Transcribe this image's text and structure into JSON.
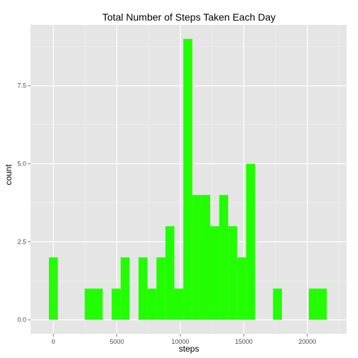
{
  "chart_data": {
    "type": "bar",
    "title": "Total Number of Steps Taken Each Day",
    "xlabel": "steps",
    "ylabel": "count",
    "xlim": [
      -1800,
      23100
    ],
    "ylim": [
      -0.45,
      9.45
    ],
    "x_ticks": [
      0,
      5000,
      10000,
      15000,
      20000
    ],
    "x_tick_labels": [
      "0",
      "5000",
      "10000",
      "15000",
      "20000"
    ],
    "y_ticks": [
      0.0,
      2.5,
      5.0,
      7.5
    ],
    "y_tick_labels": [
      "0.0",
      "2.5",
      "5.0",
      "7.5"
    ],
    "grid": true,
    "colors": {
      "bar": "#22ff00",
      "panel_background": "#e5e5e5",
      "grid_major": "#ffffff",
      "grid_minor": "#f2f2f2"
    },
    "bin_width": 706,
    "bins": [
      {
        "x": 0,
        "count": 2
      },
      {
        "x": 706,
        "count": 0
      },
      {
        "x": 1412,
        "count": 0
      },
      {
        "x": 2118,
        "count": 0
      },
      {
        "x": 2824,
        "count": 1
      },
      {
        "x": 3530,
        "count": 1
      },
      {
        "x": 4236,
        "count": 0
      },
      {
        "x": 4942,
        "count": 1
      },
      {
        "x": 5648,
        "count": 2
      },
      {
        "x": 6354,
        "count": 0
      },
      {
        "x": 7060,
        "count": 2
      },
      {
        "x": 7766,
        "count": 1
      },
      {
        "x": 8472,
        "count": 2
      },
      {
        "x": 9178,
        "count": 3
      },
      {
        "x": 9884,
        "count": 1
      },
      {
        "x": 10590,
        "count": 9
      },
      {
        "x": 11296,
        "count": 4
      },
      {
        "x": 12002,
        "count": 4
      },
      {
        "x": 12708,
        "count": 3
      },
      {
        "x": 13414,
        "count": 4
      },
      {
        "x": 14120,
        "count": 3
      },
      {
        "x": 14826,
        "count": 2
      },
      {
        "x": 15532,
        "count": 5
      },
      {
        "x": 16238,
        "count": 0
      },
      {
        "x": 16944,
        "count": 0
      },
      {
        "x": 17650,
        "count": 1
      },
      {
        "x": 18356,
        "count": 0
      },
      {
        "x": 19062,
        "count": 0
      },
      {
        "x": 19768,
        "count": 0
      },
      {
        "x": 20474,
        "count": 1
      },
      {
        "x": 21180,
        "count": 1
      }
    ]
  }
}
